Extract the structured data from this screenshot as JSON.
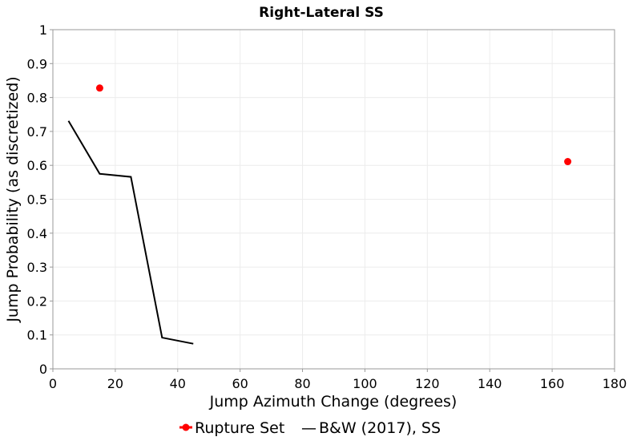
{
  "chart_data": {
    "type": "line",
    "title": "Right-Lateral SS",
    "xlabel": "Jump Azimuth Change (degrees)",
    "ylabel": "Jump Probability (as discretized)",
    "xlim": [
      0,
      180
    ],
    "ylim": [
      0,
      1
    ],
    "x_ticks": [
      "0",
      "20",
      "40",
      "60",
      "80",
      "100",
      "120",
      "140",
      "160",
      "180"
    ],
    "y_ticks": [
      "0",
      "0.1",
      "0.2",
      "0.3",
      "0.4",
      "0.5",
      "0.6",
      "0.7",
      "0.8",
      "0.9",
      "1"
    ],
    "grid": true,
    "series": [
      {
        "name": "Rupture Set",
        "kind": "scatter",
        "color": "#ff0000",
        "x": [
          15,
          165
        ],
        "y": [
          0.828,
          0.611
        ]
      },
      {
        "name": "B&W (2017), SS",
        "kind": "line",
        "color": "#000000",
        "x": [
          5,
          15,
          25,
          35,
          45
        ],
        "y": [
          0.731,
          0.575,
          0.566,
          0.092,
          0.074
        ]
      }
    ],
    "legend": {
      "placement": "bottom-center",
      "separator": "—",
      "entries": [
        "Rupture Set",
        "B&W (2017), SS"
      ]
    }
  }
}
